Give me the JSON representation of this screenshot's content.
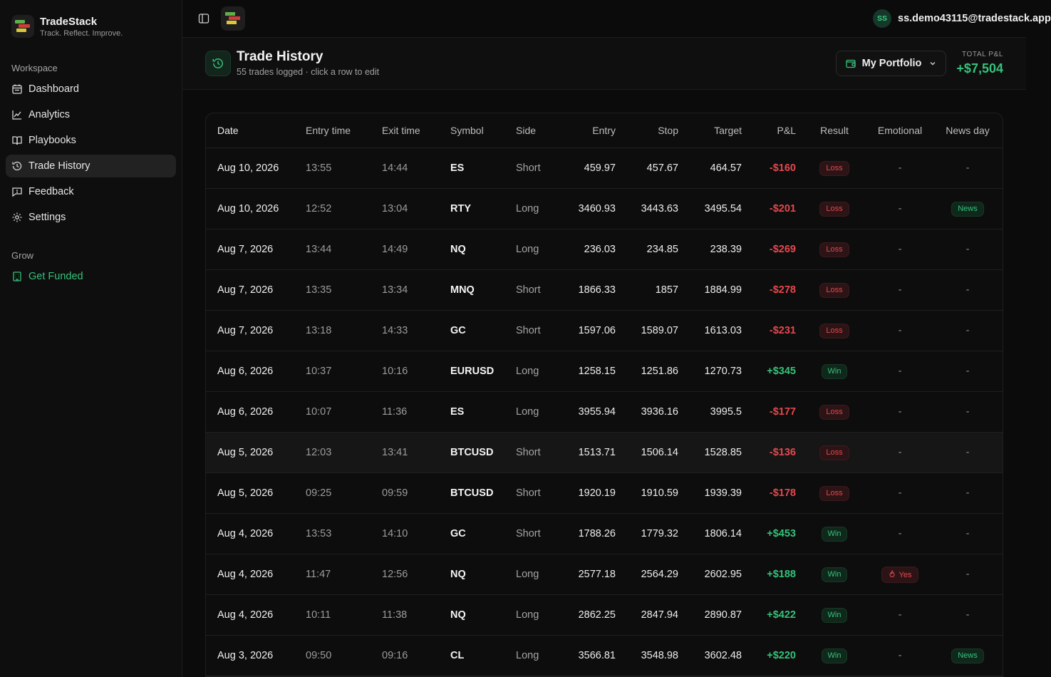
{
  "brand": {
    "name": "TradeStack",
    "tagline": "Track. Reflect. Improve."
  },
  "sidebar": {
    "workspace_label": "Workspace",
    "items": [
      {
        "label": "Dashboard",
        "icon": "calendar-icon"
      },
      {
        "label": "Analytics",
        "icon": "chart-line-icon"
      },
      {
        "label": "Playbooks",
        "icon": "book-icon"
      },
      {
        "label": "Trade History",
        "icon": "history-icon",
        "active": true
      },
      {
        "label": "Feedback",
        "icon": "message-icon"
      },
      {
        "label": "Settings",
        "icon": "gear-icon"
      }
    ],
    "grow_label": "Grow",
    "funded_label": "Get Funded"
  },
  "topbar": {
    "avatar_initials": "SS",
    "email": "ss.demo43115@tradestack.app"
  },
  "page": {
    "title": "Trade History",
    "subtitle": "55 trades logged · click a row to edit",
    "portfolio_label": "My Portfolio",
    "total_pnl_label": "TOTAL P&L",
    "total_pnl_value": "+$7,504"
  },
  "colors": {
    "accent": "#35c27a",
    "loss": "#e5484d",
    "bg": "#0b0b0b"
  },
  "table": {
    "headers": [
      "Date",
      "Entry time",
      "Exit time",
      "Symbol",
      "Side",
      "Entry",
      "Stop",
      "Target",
      "P&L",
      "Result",
      "Emotional",
      "News day"
    ],
    "rows": [
      {
        "date": "Aug 10, 2026",
        "entry_time": "13:55",
        "exit_time": "14:44",
        "symbol": "ES",
        "side": "Short",
        "entry": "459.97",
        "stop": "457.67",
        "target": "464.57",
        "pnl": "-$160",
        "result": "Loss",
        "emotional": "-",
        "news": "-"
      },
      {
        "date": "Aug 10, 2026",
        "entry_time": "12:52",
        "exit_time": "13:04",
        "symbol": "RTY",
        "side": "Long",
        "entry": "3460.93",
        "stop": "3443.63",
        "target": "3495.54",
        "pnl": "-$201",
        "result": "Loss",
        "emotional": "-",
        "news": "News"
      },
      {
        "date": "Aug 7, 2026",
        "entry_time": "13:44",
        "exit_time": "14:49",
        "symbol": "NQ",
        "side": "Long",
        "entry": "236.03",
        "stop": "234.85",
        "target": "238.39",
        "pnl": "-$269",
        "result": "Loss",
        "emotional": "-",
        "news": "-"
      },
      {
        "date": "Aug 7, 2026",
        "entry_time": "13:35",
        "exit_time": "13:34",
        "symbol": "MNQ",
        "side": "Short",
        "entry": "1866.33",
        "stop": "1857",
        "target": "1884.99",
        "pnl": "-$278",
        "result": "Loss",
        "emotional": "-",
        "news": "-"
      },
      {
        "date": "Aug 7, 2026",
        "entry_time": "13:18",
        "exit_time": "14:33",
        "symbol": "GC",
        "side": "Short",
        "entry": "1597.06",
        "stop": "1589.07",
        "target": "1613.03",
        "pnl": "-$231",
        "result": "Loss",
        "emotional": "-",
        "news": "-"
      },
      {
        "date": "Aug 6, 2026",
        "entry_time": "10:37",
        "exit_time": "10:16",
        "symbol": "EURUSD",
        "side": "Long",
        "entry": "1258.15",
        "stop": "1251.86",
        "target": "1270.73",
        "pnl": "+$345",
        "result": "Win",
        "emotional": "-",
        "news": "-"
      },
      {
        "date": "Aug 6, 2026",
        "entry_time": "10:07",
        "exit_time": "11:36",
        "symbol": "ES",
        "side": "Long",
        "entry": "3955.94",
        "stop": "3936.16",
        "target": "3995.5",
        "pnl": "-$177",
        "result": "Loss",
        "emotional": "-",
        "news": "-"
      },
      {
        "date": "Aug 5, 2026",
        "entry_time": "12:03",
        "exit_time": "13:41",
        "symbol": "BTCUSD",
        "side": "Short",
        "entry": "1513.71",
        "stop": "1506.14",
        "target": "1528.85",
        "pnl": "-$136",
        "result": "Loss",
        "emotional": "-",
        "news": "-",
        "highlight": true
      },
      {
        "date": "Aug 5, 2026",
        "entry_time": "09:25",
        "exit_time": "09:59",
        "symbol": "BTCUSD",
        "side": "Short",
        "entry": "1920.19",
        "stop": "1910.59",
        "target": "1939.39",
        "pnl": "-$178",
        "result": "Loss",
        "emotional": "-",
        "news": "-"
      },
      {
        "date": "Aug 4, 2026",
        "entry_time": "13:53",
        "exit_time": "14:10",
        "symbol": "GC",
        "side": "Short",
        "entry": "1788.26",
        "stop": "1779.32",
        "target": "1806.14",
        "pnl": "+$453",
        "result": "Win",
        "emotional": "-",
        "news": "-"
      },
      {
        "date": "Aug 4, 2026",
        "entry_time": "11:47",
        "exit_time": "12:56",
        "symbol": "NQ",
        "side": "Long",
        "entry": "2577.18",
        "stop": "2564.29",
        "target": "2602.95",
        "pnl": "+$188",
        "result": "Win",
        "emotional": "Yes",
        "news": "-"
      },
      {
        "date": "Aug 4, 2026",
        "entry_time": "10:11",
        "exit_time": "11:38",
        "symbol": "NQ",
        "side": "Long",
        "entry": "2862.25",
        "stop": "2847.94",
        "target": "2890.87",
        "pnl": "+$422",
        "result": "Win",
        "emotional": "-",
        "news": "-"
      },
      {
        "date": "Aug 3, 2026",
        "entry_time": "09:50",
        "exit_time": "09:16",
        "symbol": "CL",
        "side": "Long",
        "entry": "3566.81",
        "stop": "3548.98",
        "target": "3602.48",
        "pnl": "+$220",
        "result": "Win",
        "emotional": "-",
        "news": "News"
      }
    ]
  }
}
